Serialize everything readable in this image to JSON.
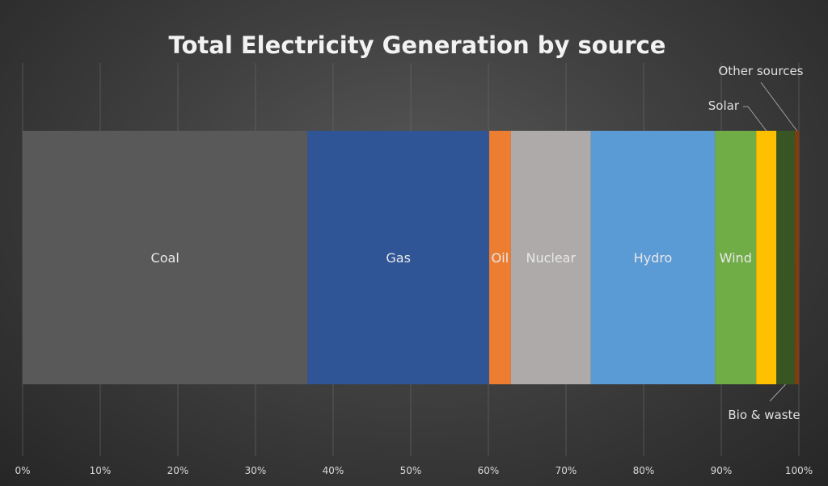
{
  "chart_data": {
    "type": "bar",
    "orientation": "horizontal",
    "stacked": "100%",
    "title": "Total Electricity Generation by source",
    "xlim": [
      0,
      100
    ],
    "x_ticks": [
      "0%",
      "10%",
      "20%",
      "30%",
      "40%",
      "50%",
      "60%",
      "70%",
      "80%",
      "90%",
      "100%"
    ],
    "grid": true,
    "series": [
      {
        "name": "Coal",
        "value": 36.7,
        "color": "#595959",
        "label_inside": true
      },
      {
        "name": "Gas",
        "value": 23.4,
        "color": "#2f5597",
        "label_inside": true
      },
      {
        "name": "Oil",
        "value": 2.8,
        "color": "#ed7d31",
        "label_inside": true
      },
      {
        "name": "Nuclear",
        "value": 10.3,
        "color": "#aeaaaa",
        "label_inside": true
      },
      {
        "name": "Hydro",
        "value": 16.0,
        "color": "#5b9bd5",
        "label_inside": true
      },
      {
        "name": "Wind",
        "value": 5.3,
        "color": "#70ad47",
        "label_inside": true
      },
      {
        "name": "Solar",
        "value": 2.6,
        "color": "#ffc000",
        "label_inside": false
      },
      {
        "name": "Bio & waste",
        "value": 2.4,
        "color": "#375623",
        "label_inside": false
      },
      {
        "name": "Other sources",
        "value": 0.5,
        "color": "#843c0c",
        "label_inside": false
      }
    ]
  }
}
